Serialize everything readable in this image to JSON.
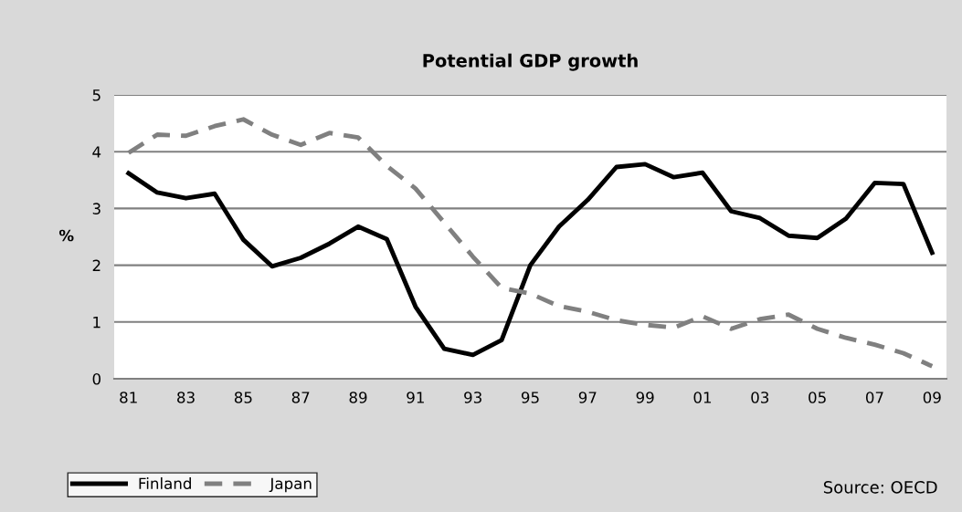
{
  "chart_data": {
    "type": "line",
    "title": "Potential GDP growth",
    "ylabel": "%",
    "categories": [
      "81",
      null,
      "83",
      null,
      "85",
      null,
      "87",
      null,
      "89",
      null,
      "91",
      null,
      "93",
      null,
      "95",
      null,
      "97",
      null,
      "99",
      null,
      "01",
      null,
      "03",
      null,
      "05",
      null,
      "07",
      null,
      "09"
    ],
    "series": [
      {
        "name": "Finland",
        "color": "#000000",
        "line_style": "solid",
        "values": [
          3.62,
          3.28,
          3.18,
          3.26,
          2.45,
          1.98,
          2.13,
          2.38,
          2.68,
          2.46,
          1.27,
          0.53,
          0.42,
          0.68,
          2.0,
          2.68,
          3.15,
          3.73,
          3.78,
          3.55,
          3.63,
          2.95,
          2.83,
          2.52,
          2.48,
          2.82,
          3.45,
          3.43,
          2.22
        ]
      },
      {
        "name": "Japan",
        "color": "#808080",
        "line_style": "dashed",
        "values": [
          3.98,
          4.3,
          4.28,
          4.45,
          4.57,
          4.3,
          4.12,
          4.33,
          4.25,
          3.75,
          3.35,
          2.75,
          2.15,
          1.6,
          1.5,
          1.28,
          1.18,
          1.03,
          0.95,
          0.9,
          1.1,
          0.88,
          1.05,
          1.13,
          0.88,
          0.72,
          0.6,
          0.45,
          0.22
        ]
      }
    ],
    "ylim": [
      0,
      5
    ],
    "yticks": [
      0,
      1,
      2,
      3,
      4,
      5
    ],
    "grid": "y",
    "legend": "bottom left",
    "marker": "none",
    "annotations": [
      "Source: OECD"
    ]
  }
}
